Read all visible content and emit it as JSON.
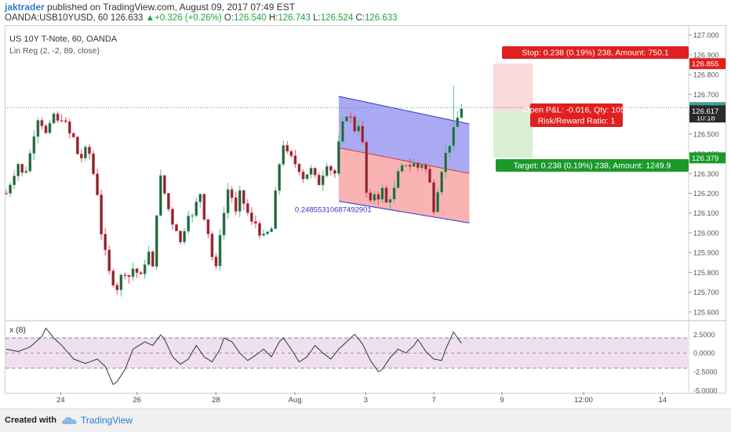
{
  "header": {
    "author": "jaktrader",
    "published": "published on TradingView.com, August 09, 2017 07:49 EST",
    "symbol_line": "OANDA:USB10YUSD, 60",
    "last": "126.633",
    "change_arrow": "▲",
    "change": "+0.326 (+0.26%)",
    "o_label": "O:",
    "o_value": "126.540",
    "h_label": "H:",
    "h_value": "126.743",
    "l_label": "L:",
    "l_value": "126.524",
    "c_label": "C:",
    "c_value": "126.633"
  },
  "legend": {
    "series": "US 10Y T-Note, 60, OANDA",
    "indicator": "Lin Reg (2, -2, 89, close)",
    "osc": "x (8)"
  },
  "colors": {
    "up": "#53b987",
    "down": "#eb4d5c",
    "candle_body": "#2f5a3a",
    "candle_body_down": "#7a2c30",
    "channel_upper_fill": "#8c8cf0",
    "channel_lower_fill": "#f79a9a",
    "channel_line": "#3333cc",
    "osc_fill": "#f0dff0",
    "stop_red": "#e02020",
    "target_green": "#1a9a2a",
    "brand": "#2a7bd6"
  },
  "chart_data": [
    {
      "type": "candlestick",
      "title": "US 10Y T-Note, 60, OANDA",
      "ylim": [
        125.56,
        127.05
      ],
      "y_ticks": [
        125.6,
        125.7,
        125.8,
        125.9,
        126.0,
        126.1,
        126.2,
        126.3,
        126.4,
        126.5,
        126.6,
        126.7,
        126.8,
        126.9,
        127.0
      ],
      "y_tick_labels": [
        "125.600",
        "125.700",
        "125.800",
        "125.900",
        "126.000",
        "126.100",
        "126.200",
        "126.300",
        "126.400",
        "126.500",
        "126.600",
        "126.700",
        "126.800",
        "126.900",
        "127.000"
      ],
      "x_tick_labels": [
        "24",
        "26",
        "28",
        "Aug",
        "3",
        "7",
        "9",
        "12:00",
        "14"
      ],
      "close_path": [
        [
          0,
          126.2
        ],
        [
          2,
          126.3
        ],
        [
          3,
          126.35
        ],
        [
          4,
          126.3
        ],
        [
          5,
          126.32
        ],
        [
          6,
          126.4
        ],
        [
          7,
          126.5
        ],
        [
          8,
          126.58
        ],
        [
          9,
          126.55
        ],
        [
          10,
          126.5
        ],
        [
          11,
          126.54
        ],
        [
          12,
          126.6
        ],
        [
          13,
          126.56
        ],
        [
          14,
          126.58
        ],
        [
          15,
          126.55
        ],
        [
          16,
          126.5
        ],
        [
          17,
          126.48
        ],
        [
          18,
          126.4
        ],
        [
          19,
          126.38
        ],
        [
          20,
          126.42
        ],
        [
          21,
          126.4
        ],
        [
          22,
          126.3
        ],
        [
          23,
          126.2
        ],
        [
          24,
          126.0
        ],
        [
          25,
          125.9
        ],
        [
          26,
          125.8
        ],
        [
          27,
          125.75
        ],
        [
          28,
          125.72
        ],
        [
          29,
          125.78
        ],
        [
          30,
          125.8
        ],
        [
          31,
          125.78
        ],
        [
          32,
          125.82
        ],
        [
          33,
          125.8
        ],
        [
          34,
          125.78
        ],
        [
          35,
          125.85
        ],
        [
          36,
          125.9
        ],
        [
          37,
          125.82
        ],
        [
          38,
          126.1
        ],
        [
          39,
          126.28
        ],
        [
          40,
          126.2
        ],
        [
          41,
          126.12
        ],
        [
          42,
          126.05
        ],
        [
          43,
          126.02
        ],
        [
          44,
          125.95
        ],
        [
          45,
          126.02
        ],
        [
          46,
          126.1
        ],
        [
          47,
          126.08
        ],
        [
          48,
          126.15
        ],
        [
          49,
          126.2
        ],
        [
          50,
          126.08
        ],
        [
          51,
          126.0
        ],
        [
          52,
          125.88
        ],
        [
          53,
          125.82
        ],
        [
          54,
          126.0
        ],
        [
          55,
          126.1
        ],
        [
          56,
          126.22
        ],
        [
          57,
          126.18
        ],
        [
          58,
          126.1
        ],
        [
          59,
          126.2
        ],
        [
          60,
          126.15
        ],
        [
          61,
          126.1
        ],
        [
          62,
          126.05
        ],
        [
          63,
          126.05
        ],
        [
          64,
          126.0
        ],
        [
          65,
          125.98
        ],
        [
          66,
          126.0
        ],
        [
          67,
          126.02
        ],
        [
          68,
          126.2
        ],
        [
          69,
          126.35
        ],
        [
          70,
          126.45
        ],
        [
          71,
          126.4
        ],
        [
          72,
          126.38
        ],
        [
          73,
          126.35
        ],
        [
          74,
          126.32
        ],
        [
          75,
          126.28
        ],
        [
          76,
          126.3
        ],
        [
          77,
          126.32
        ],
        [
          78,
          126.28
        ],
        [
          79,
          126.25
        ],
        [
          80,
          126.3
        ],
        [
          81,
          126.35
        ],
        [
          82,
          126.32
        ],
        [
          83,
          126.3
        ],
        [
          84,
          126.45
        ],
        [
          85,
          126.55
        ],
        [
          86,
          126.6
        ],
        [
          87,
          126.58
        ],
        [
          88,
          126.52
        ],
        [
          89,
          126.55
        ],
        [
          90,
          126.45
        ],
        [
          91,
          126.2
        ],
        [
          92,
          126.15
        ],
        [
          93,
          126.2
        ],
        [
          94,
          126.18
        ],
        [
          95,
          126.22
        ],
        [
          96,
          126.15
        ],
        [
          97,
          126.18
        ],
        [
          98,
          126.22
        ],
        [
          99,
          126.3
        ],
        [
          100,
          126.33
        ],
        [
          101,
          126.35
        ],
        [
          102,
          126.34
        ],
        [
          103,
          126.35
        ],
        [
          104,
          126.33
        ],
        [
          105,
          126.35
        ],
        [
          106,
          126.32
        ],
        [
          107,
          126.25
        ],
        [
          108,
          126.12
        ],
        [
          109,
          126.22
        ],
        [
          110,
          126.32
        ],
        [
          111,
          126.4
        ],
        [
          112,
          126.45
        ],
        [
          113,
          126.52
        ],
        [
          114,
          126.58
        ],
        [
          115,
          126.633
        ]
      ],
      "last_price": 126.633,
      "last_price_label": "126.633",
      "countdown_label": "10:18",
      "price_labels": [
        {
          "value": 126.617,
          "label": "126.617"
        },
        {
          "value": 126.855,
          "label": "126.855"
        },
        {
          "value": 126.379,
          "label": "126.379"
        }
      ],
      "regression_channel": {
        "start_index": 84,
        "end_index": 117,
        "upper": [
          126.69,
          126.55
        ],
        "mid": [
          126.43,
          126.3
        ],
        "lower": [
          126.16,
          126.05
        ],
        "label": "0.24855310687492901"
      },
      "position": {
        "entry": 126.617,
        "stop": 126.855,
        "target": 126.379,
        "stop_label": "Stop: 0.238 (0.19%) 238, Amount: 750.1",
        "target_label": "Target: 0.238 (0.19%) 238, Amount: 1249.9",
        "pnl_label": "Open P&L: -0.016, Qty: 1050",
        "rr_label": "Risk/Reward Ratio: 1"
      }
    },
    {
      "type": "line",
      "title": "x (8)",
      "ylim": [
        -5.2,
        4.2
      ],
      "y_ticks": [
        2.5,
        0.0,
        -2.5,
        -5.0
      ],
      "y_tick_labels": [
        "2.5000",
        "0.0000",
        "-2.5000",
        "-5.0000"
      ],
      "band": [
        -2.0,
        2.0
      ],
      "values": [
        [
          0,
          0.5
        ],
        [
          3,
          0.2
        ],
        [
          6,
          0.8
        ],
        [
          9,
          2.2
        ],
        [
          10,
          3.3
        ],
        [
          12,
          2.0
        ],
        [
          14,
          1.0
        ],
        [
          17,
          -0.8
        ],
        [
          20,
          -1.4
        ],
        [
          23,
          -0.8
        ],
        [
          25,
          -1.8
        ],
        [
          27,
          -4.2
        ],
        [
          28,
          -3.8
        ],
        [
          30,
          -2.2
        ],
        [
          32,
          0.5
        ],
        [
          35,
          1.5
        ],
        [
          37,
          1.0
        ],
        [
          39,
          2.4
        ],
        [
          40,
          1.8
        ],
        [
          42,
          -0.5
        ],
        [
          44,
          -1.5
        ],
        [
          46,
          -0.8
        ],
        [
          48,
          1.0
        ],
        [
          50,
          -0.5
        ],
        [
          52,
          -1.2
        ],
        [
          54,
          0.5
        ],
        [
          55,
          2.0
        ],
        [
          57,
          1.5
        ],
        [
          59,
          0.0
        ],
        [
          61,
          -1.0
        ],
        [
          63,
          -0.3
        ],
        [
          65,
          0.5
        ],
        [
          67,
          -0.5
        ],
        [
          69,
          1.5
        ],
        [
          70,
          2.0
        ],
        [
          72,
          0.5
        ],
        [
          74,
          -1.2
        ],
        [
          76,
          -0.5
        ],
        [
          78,
          1.0
        ],
        [
          80,
          0.0
        ],
        [
          82,
          -0.8
        ],
        [
          84,
          0.5
        ],
        [
          86,
          1.5
        ],
        [
          88,
          2.5
        ],
        [
          90,
          1.2
        ],
        [
          92,
          -1.0
        ],
        [
          94,
          -2.5
        ],
        [
          95,
          -2.2
        ],
        [
          97,
          -0.6
        ],
        [
          99,
          0.5
        ],
        [
          101,
          0.0
        ],
        [
          103,
          1.0
        ],
        [
          104,
          1.8
        ],
        [
          106,
          0.2
        ],
        [
          108,
          -0.8
        ],
        [
          110,
          -1.0
        ],
        [
          111,
          0.5
        ],
        [
          113,
          2.8
        ],
        [
          114,
          2.0
        ],
        [
          115,
          1.3
        ]
      ]
    }
  ],
  "footer": {
    "created_with": "Created with",
    "brand": "TradingView"
  }
}
